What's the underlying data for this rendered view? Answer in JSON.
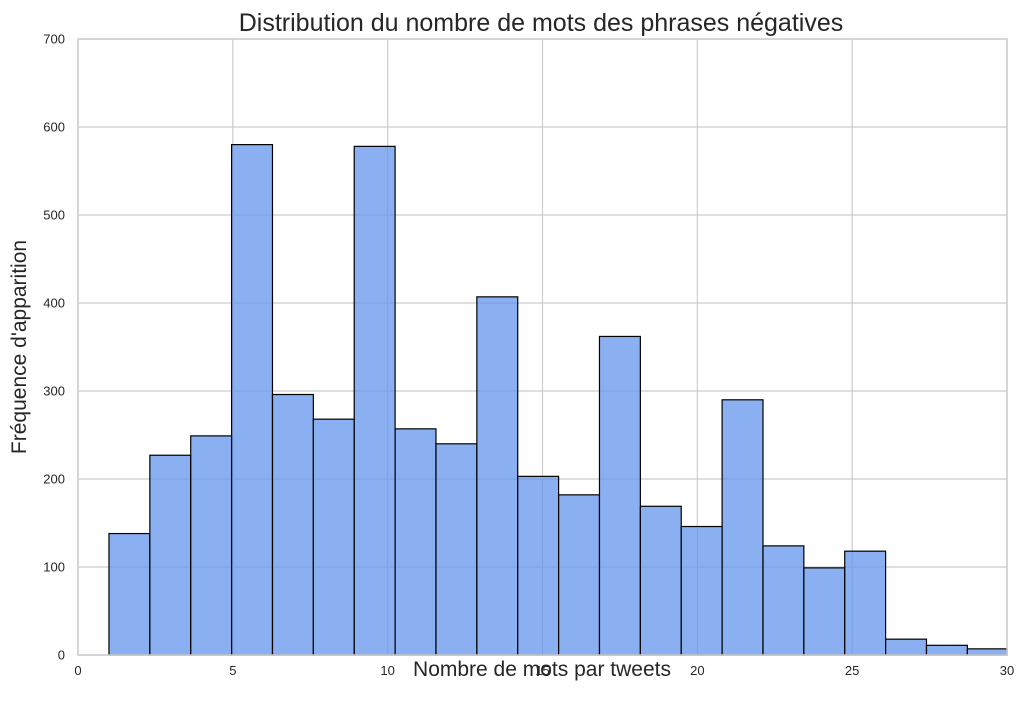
{
  "chart_data": {
    "type": "bar",
    "title": "Distribution du nombre de mots des phrases négatives",
    "xlabel": "Nombre de mots par tweets",
    "ylabel": "Fréquence d'apparition",
    "xlim": [
      0,
      30
    ],
    "ylim": [
      0,
      700
    ],
    "xticks": [
      "0",
      "5",
      "10",
      "15",
      "20",
      "25",
      "30"
    ],
    "yticks": [
      "0",
      "100",
      "200",
      "300",
      "400",
      "500",
      "600",
      "700"
    ],
    "grid": true,
    "bar_color": "#6495ED",
    "edge_color": "#000000",
    "bins": [
      {
        "x0": 1.0,
        "x1": 2.32,
        "value": 138
      },
      {
        "x0": 2.32,
        "x1": 3.64,
        "value": 227
      },
      {
        "x0": 3.64,
        "x1": 4.96,
        "value": 249
      },
      {
        "x0": 4.96,
        "x1": 6.28,
        "value": 580
      },
      {
        "x0": 6.28,
        "x1": 7.6,
        "value": 296
      },
      {
        "x0": 7.6,
        "x1": 8.92,
        "value": 268
      },
      {
        "x0": 8.92,
        "x1": 10.24,
        "value": 578
      },
      {
        "x0": 10.24,
        "x1": 11.56,
        "value": 257
      },
      {
        "x0": 11.56,
        "x1": 12.88,
        "value": 240
      },
      {
        "x0": 12.88,
        "x1": 14.2,
        "value": 407
      },
      {
        "x0": 14.2,
        "x1": 15.52,
        "value": 203
      },
      {
        "x0": 15.52,
        "x1": 16.84,
        "value": 182
      },
      {
        "x0": 16.84,
        "x1": 18.16,
        "value": 362
      },
      {
        "x0": 18.16,
        "x1": 19.48,
        "value": 169
      },
      {
        "x0": 19.48,
        "x1": 20.8,
        "value": 146
      },
      {
        "x0": 20.8,
        "x1": 22.12,
        "value": 290
      },
      {
        "x0": 22.12,
        "x1": 23.44,
        "value": 124
      },
      {
        "x0": 23.44,
        "x1": 24.76,
        "value": 99
      },
      {
        "x0": 24.76,
        "x1": 26.08,
        "value": 118
      },
      {
        "x0": 26.08,
        "x1": 27.4,
        "value": 18
      },
      {
        "x0": 27.4,
        "x1": 28.72,
        "value": 11
      },
      {
        "x0": 28.72,
        "x1": 30.04,
        "value": 7
      }
    ]
  }
}
